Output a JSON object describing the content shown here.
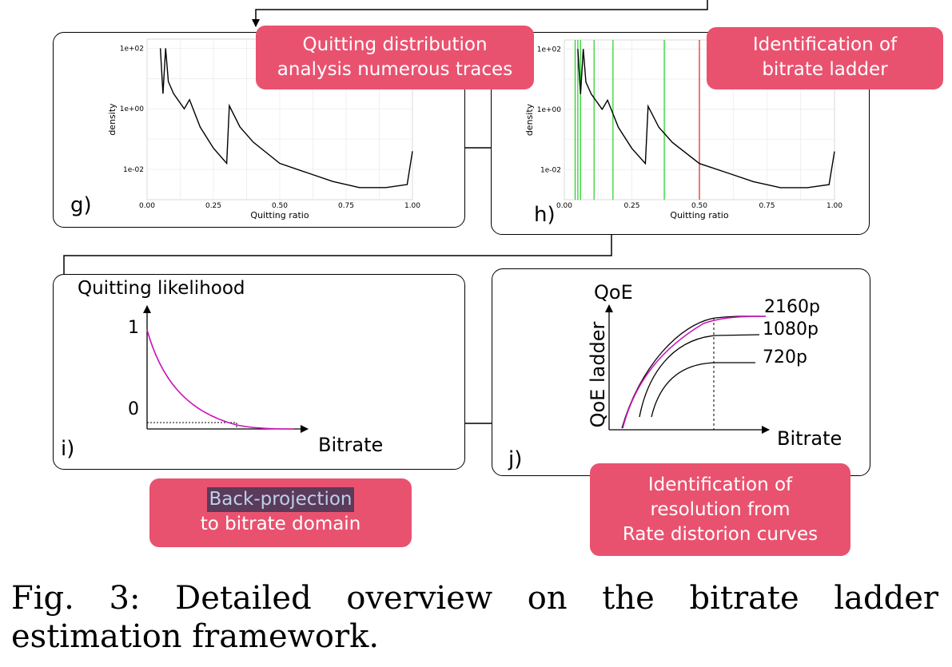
{
  "panels": {
    "g": {
      "label": "g)",
      "chart": {
        "ylabel": "density",
        "xlabel": "Quitting ratio",
        "xticks": [
          "0.00",
          "0.25",
          "0.50",
          "0.75",
          "1.00"
        ],
        "yticks": [
          "1e+02",
          "1e+00",
          "1e-02"
        ]
      }
    },
    "h": {
      "label": "h)",
      "chart": {
        "ylabel": "density",
        "xlabel": "Quitting ratio",
        "xticks": [
          "0.00",
          "0.25",
          "0.50",
          "0.75",
          "1.00"
        ],
        "yticks": [
          "1e+02",
          "1e+00",
          "1e-02"
        ]
      }
    },
    "i": {
      "label": "i)",
      "ylabel": "Quitting likelihood",
      "xlabel": "Bitrate",
      "ytick_top": "1",
      "ytick_bottom": "0"
    },
    "j": {
      "label": "j)",
      "ylabel": "QoE ladder",
      "top_label": "QoE",
      "xlabel": "Bitrate",
      "curves": [
        "2160p",
        "1080p",
        "720p"
      ]
    }
  },
  "callouts": {
    "quitting": [
      "Quitting distribution",
      "analysis numerous traces"
    ],
    "ladder": [
      "Identification of",
      "bitrate ladder"
    ],
    "backprojection": [
      "Back-projection",
      "to bitrate domain"
    ],
    "resolution": [
      "Identification of",
      "resolution from",
      "Rate distorion curves"
    ]
  },
  "caption": "Fig. 3: Detailed overview on the bitrate ladder estimation framework.",
  "chart_data": [
    {
      "type": "line",
      "panel": "g",
      "xlabel": "Quitting ratio",
      "ylabel": "density",
      "xlim": [
        0,
        1
      ],
      "ylim_log10": [
        -3,
        2.3
      ],
      "log_y": true,
      "x": [
        0.05,
        0.06,
        0.07,
        0.08,
        0.1,
        0.14,
        0.16,
        0.2,
        0.25,
        0.3,
        0.31,
        0.35,
        0.4,
        0.5,
        0.6,
        0.7,
        0.8,
        0.9,
        0.98,
        1.0
      ],
      "y_log10": [
        2.0,
        0.5,
        2.0,
        0.9,
        0.5,
        0.0,
        0.3,
        -0.6,
        -1.3,
        -1.8,
        0.1,
        -0.6,
        -1.1,
        -1.8,
        -2.1,
        -2.4,
        -2.6,
        -2.6,
        -2.5,
        -1.4
      ]
    },
    {
      "type": "line",
      "panel": "h",
      "xlabel": "Quitting ratio",
      "ylabel": "density",
      "xlim": [
        0,
        1
      ],
      "ylim_log10": [
        -3,
        2.3
      ],
      "log_y": true,
      "x": [
        0.05,
        0.06,
        0.07,
        0.08,
        0.1,
        0.14,
        0.16,
        0.2,
        0.25,
        0.3,
        0.31,
        0.35,
        0.4,
        0.5,
        0.6,
        0.7,
        0.8,
        0.9,
        0.98,
        1.0
      ],
      "y_log10": [
        2.0,
        0.5,
        2.0,
        0.9,
        0.5,
        0.0,
        0.3,
        -0.6,
        -1.3,
        -1.8,
        0.1,
        -0.6,
        -1.1,
        -1.8,
        -2.1,
        -2.4,
        -2.6,
        -2.6,
        -2.5,
        -1.4
      ],
      "vlines_green": [
        0.04,
        0.05,
        0.06,
        0.11,
        0.18,
        0.37
      ],
      "vlines_red": [
        0.5
      ]
    }
  ],
  "colors": {
    "callout": "#e9526f",
    "green_line": "#22cc22",
    "red_line": "#e02020",
    "magenta_curve": "#cc11bb"
  }
}
